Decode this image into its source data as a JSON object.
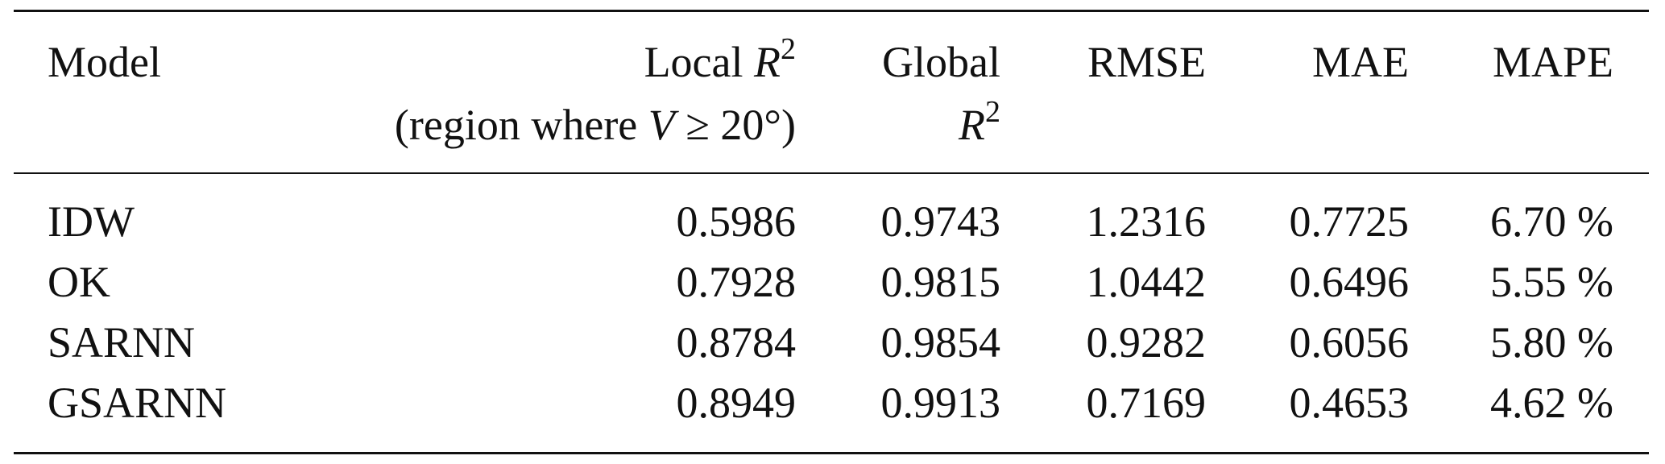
{
  "table": {
    "header": [
      {
        "line1": [
          "Model"
        ]
      },
      {
        "line1": [
          "Local ",
          "R",
          "2"
        ],
        "line2": [
          "(region where ",
          "V",
          " ≥ 20°)"
        ]
      },
      {
        "line1": [
          "Global"
        ],
        "line2": [
          "R",
          "2"
        ]
      },
      {
        "line1": [
          "RMSE"
        ]
      },
      {
        "line1": [
          "MAE"
        ]
      },
      {
        "line1": [
          "MAPE"
        ]
      }
    ],
    "rows": [
      [
        "IDW",
        "0.5986",
        "0.9743",
        "1.2316",
        "0.7725",
        "6.70 %"
      ],
      [
        "OK",
        "0.7928",
        "0.9815",
        "1.0442",
        "0.6496",
        "5.55 %"
      ],
      [
        "SARNN",
        "0.8784",
        "0.9854",
        "0.9282",
        "0.6056",
        "5.80 %"
      ],
      [
        "GSARNN",
        "0.8949",
        "0.9913",
        "0.7169",
        "0.4653",
        "4.62 %"
      ]
    ]
  }
}
